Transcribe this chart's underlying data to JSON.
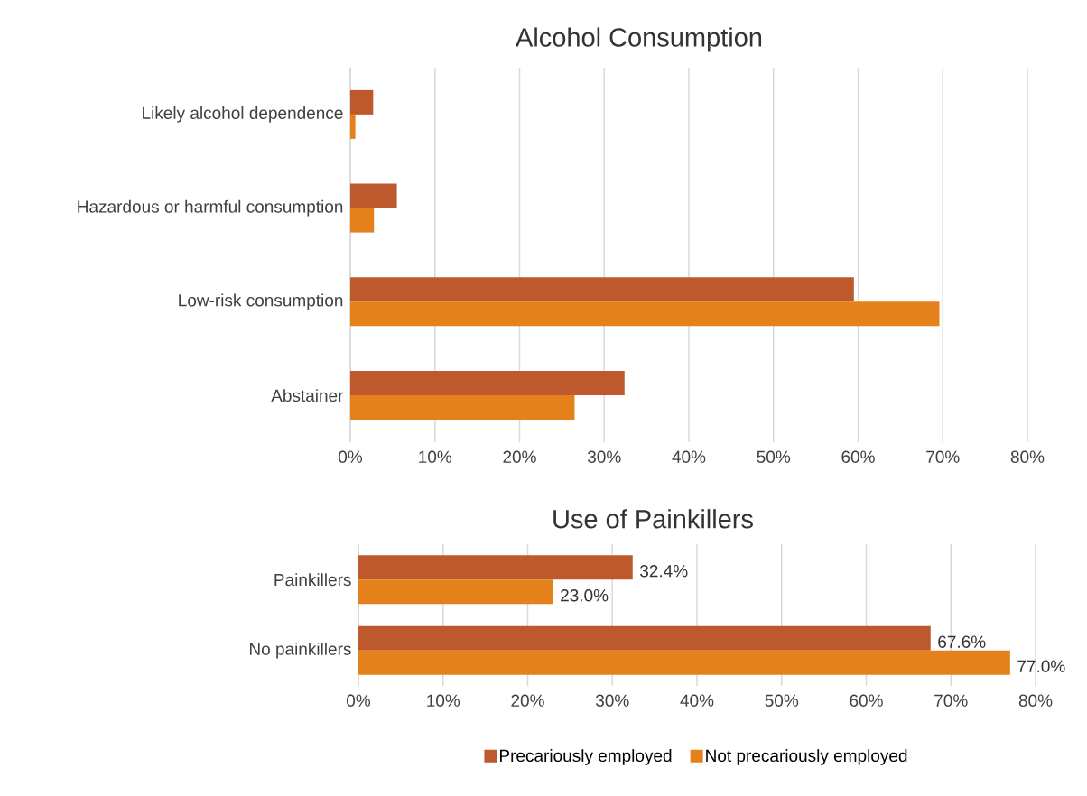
{
  "chart_data": [
    {
      "type": "bar",
      "orientation": "horizontal",
      "title": "Alcohol Consumption",
      "categories": [
        "Likely alcohol dependence",
        "Hazardous or harmful consumption",
        "Low-risk consumption",
        "Abstainer"
      ],
      "series": [
        {
          "color": "#be582d",
          "values": [
            2.7,
            5.5,
            59.5,
            32.4
          ]
        },
        {
          "color": "#e5811a",
          "values": [
            0.6,
            2.8,
            69.6,
            26.5
          ]
        }
      ],
      "xlim": [
        0,
        80
      ],
      "xticks": [
        {
          "value": 0,
          "label": "0%"
        },
        {
          "value": 10,
          "label": "10%"
        },
        {
          "value": 20,
          "label": "20%"
        },
        {
          "value": 30,
          "label": "30%"
        },
        {
          "value": 40,
          "label": "40%"
        },
        {
          "value": 50,
          "label": "50%"
        },
        {
          "value": 60,
          "label": "60%"
        },
        {
          "value": 70,
          "label": "70%"
        },
        {
          "value": 80,
          "label": "80%"
        }
      ],
      "grid": "x"
    },
    {
      "type": "bar",
      "orientation": "horizontal",
      "title": "Use of Painkillers",
      "categories": [
        "Painkillers",
        "No painkillers"
      ],
      "series": [
        {
          "name": "Precariously employed",
          "color": "#be582d",
          "values": [
            32.4,
            67.6
          ],
          "value_labels": [
            "32.4%",
            "67.6%"
          ]
        },
        {
          "name": "Not precariously employed",
          "color": "#e5811a",
          "values": [
            23.0,
            77.0
          ],
          "value_labels": [
            "23.0%",
            "77.0%"
          ]
        }
      ],
      "xlim": [
        0,
        80
      ],
      "xticks": [
        {
          "value": 0,
          "label": "0%"
        },
        {
          "value": 10,
          "label": "10%"
        },
        {
          "value": 20,
          "label": "20%"
        },
        {
          "value": 30,
          "label": "30%"
        },
        {
          "value": 40,
          "label": "40%"
        },
        {
          "value": 50,
          "label": "50%"
        },
        {
          "value": 60,
          "label": "60%"
        },
        {
          "value": 70,
          "label": "70%"
        },
        {
          "value": 80,
          "label": "80%"
        }
      ],
      "grid": "x",
      "legend": "bottom"
    }
  ]
}
